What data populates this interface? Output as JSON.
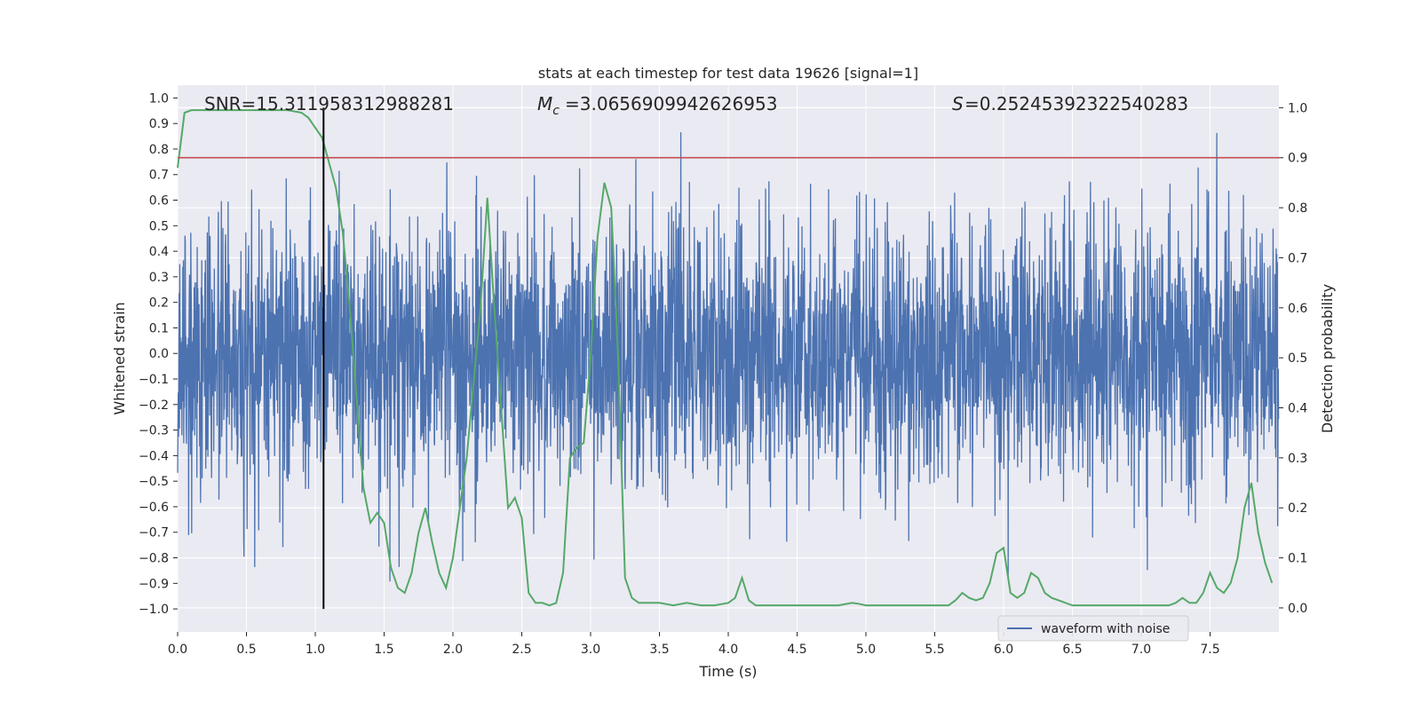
{
  "chart_data": {
    "type": "line",
    "title": "stats at each timestep for test data 19626 [signal=1]",
    "xlabel": "Time (s)",
    "ylabel_left": "Whitened strain",
    "ylabel_right": "Detection probability",
    "xlim": [
      0,
      8
    ],
    "ylim_left": [
      -1.09,
      1.05
    ],
    "ylim_right": [
      -0.048,
      1.045
    ],
    "x_ticks": [
      "0.0",
      "0.5",
      "1.0",
      "1.5",
      "2.0",
      "2.5",
      "3.0",
      "3.5",
      "4.0",
      "4.5",
      "5.0",
      "5.5",
      "6.0",
      "6.5",
      "7.0",
      "7.5"
    ],
    "x_tick_values": [
      0,
      0.5,
      1,
      1.5,
      2,
      2.5,
      3,
      3.5,
      4,
      4.5,
      5,
      5.5,
      6,
      6.5,
      7,
      7.5
    ],
    "y_left_ticks": [
      "1.0",
      "0.9",
      "0.8",
      "0.7",
      "0.6",
      "0.5",
      "0.4",
      "0.3",
      "0.2",
      "0.1",
      "0.0",
      "−0.1",
      "−0.2",
      "−0.3",
      "−0.4",
      "−0.5",
      "−0.6",
      "−0.7",
      "−0.8",
      "−0.9",
      "−1.0"
    ],
    "y_left_tick_values": [
      1.0,
      0.9,
      0.8,
      0.7,
      0.6,
      0.5,
      0.4,
      0.3,
      0.2,
      0.1,
      0.0,
      -0.1,
      -0.2,
      -0.3,
      -0.4,
      -0.5,
      -0.6,
      -0.7,
      -0.8,
      -0.9,
      -1.0
    ],
    "y_right_ticks": [
      "1.0",
      "0.9",
      "0.8",
      "0.7",
      "0.6",
      "0.5",
      "0.4",
      "0.3",
      "0.2",
      "0.1",
      "0.0"
    ],
    "y_right_tick_values": [
      1.0,
      0.9,
      0.8,
      0.7,
      0.6,
      0.5,
      0.4,
      0.3,
      0.2,
      0.1,
      0.0
    ],
    "annotations": {
      "snr": "SNR=15.311958312988281",
      "mc": "=3.0656909942626953",
      "s": "=0.25245392322540283"
    },
    "threshold_probability": 0.9,
    "peak_time_marker": 1.06,
    "legend": {
      "label": "waveform with noise",
      "position": "lower-right"
    },
    "grid": true,
    "series": [
      {
        "name": "waveform with noise",
        "color": "#4c72b0",
        "axis": "left",
        "note": "dense noisy strain, amplitude approx -1.0 to 0.95 over 0-8 s"
      },
      {
        "color": "#55a868",
        "axis": "right",
        "x": [
          0.0,
          0.05,
          0.1,
          0.2,
          0.4,
          0.6,
          0.8,
          0.9,
          0.95,
          1.0,
          1.05,
          1.1,
          1.15,
          1.2,
          1.25,
          1.3,
          1.35,
          1.4,
          1.45,
          1.5,
          1.55,
          1.6,
          1.65,
          1.7,
          1.75,
          1.8,
          1.85,
          1.9,
          1.95,
          2.0,
          2.05,
          2.1,
          2.15,
          2.2,
          2.25,
          2.3,
          2.35,
          2.4,
          2.45,
          2.5,
          2.55,
          2.6,
          2.65,
          2.7,
          2.75,
          2.8,
          2.85,
          2.9,
          2.95,
          3.0,
          3.05,
          3.1,
          3.15,
          3.2,
          3.25,
          3.3,
          3.35,
          3.4,
          3.45,
          3.5,
          3.6,
          3.7,
          3.8,
          3.9,
          4.0,
          4.05,
          4.1,
          4.15,
          4.2,
          4.3,
          4.4,
          4.5,
          4.6,
          4.7,
          4.8,
          4.9,
          4.95,
          5.0,
          5.1,
          5.2,
          5.3,
          5.4,
          5.5,
          5.6,
          5.65,
          5.7,
          5.75,
          5.8,
          5.85,
          5.9,
          5.95,
          6.0,
          6.05,
          6.1,
          6.15,
          6.2,
          6.25,
          6.3,
          6.35,
          6.4,
          6.5,
          6.6,
          6.7,
          6.8,
          6.9,
          7.0,
          7.1,
          7.2,
          7.25,
          7.3,
          7.35,
          7.4,
          7.45,
          7.5,
          7.55,
          7.6,
          7.65,
          7.7,
          7.75,
          7.8,
          7.85,
          7.9,
          7.95
        ],
        "values": [
          0.88,
          0.99,
          0.995,
          0.995,
          0.995,
          0.995,
          0.995,
          0.99,
          0.98,
          0.96,
          0.94,
          0.89,
          0.84,
          0.75,
          0.6,
          0.42,
          0.24,
          0.17,
          0.19,
          0.17,
          0.08,
          0.04,
          0.03,
          0.07,
          0.15,
          0.2,
          0.13,
          0.07,
          0.04,
          0.1,
          0.2,
          0.3,
          0.45,
          0.6,
          0.82,
          0.6,
          0.4,
          0.2,
          0.22,
          0.18,
          0.03,
          0.01,
          0.01,
          0.005,
          0.01,
          0.07,
          0.3,
          0.32,
          0.33,
          0.5,
          0.74,
          0.85,
          0.8,
          0.5,
          0.06,
          0.02,
          0.01,
          0.01,
          0.01,
          0.01,
          0.005,
          0.01,
          0.005,
          0.005,
          0.01,
          0.02,
          0.06,
          0.015,
          0.005,
          0.005,
          0.005,
          0.005,
          0.005,
          0.005,
          0.005,
          0.01,
          0.008,
          0.005,
          0.005,
          0.005,
          0.005,
          0.005,
          0.005,
          0.005,
          0.015,
          0.03,
          0.02,
          0.015,
          0.02,
          0.05,
          0.11,
          0.12,
          0.03,
          0.02,
          0.03,
          0.07,
          0.06,
          0.03,
          0.02,
          0.015,
          0.005,
          0.005,
          0.005,
          0.005,
          0.005,
          0.005,
          0.005,
          0.005,
          0.01,
          0.02,
          0.01,
          0.01,
          0.03,
          0.07,
          0.04,
          0.03,
          0.05,
          0.1,
          0.2,
          0.25,
          0.15,
          0.09,
          0.05
        ]
      }
    ],
    "colors": {
      "background": "#eaeaf2",
      "grid": "#ffffff",
      "strain": "#4c72b0",
      "probability": "#55a868",
      "threshold": "#c44e52",
      "marker": "#000000"
    }
  }
}
